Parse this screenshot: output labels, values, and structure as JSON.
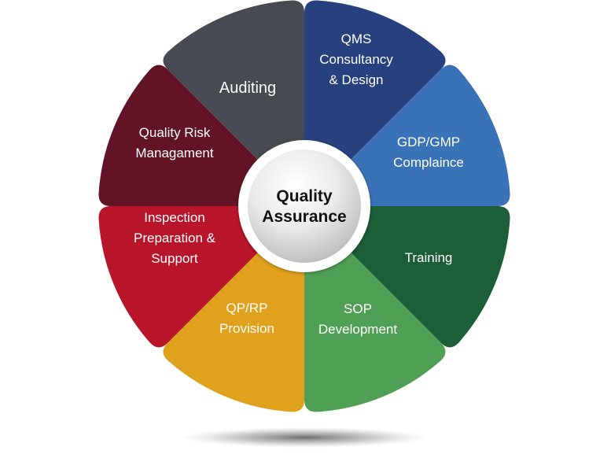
{
  "center": {
    "lines": [
      "Quality",
      "Assurance"
    ]
  },
  "segments": [
    {
      "id": "qms",
      "lines": [
        "QMS",
        "Consultancy",
        "& Design"
      ],
      "color": "#27417f"
    },
    {
      "id": "gdp-gmp",
      "lines": [
        "GDP/GMP",
        "Complaince"
      ],
      "color": "#3a72b8"
    },
    {
      "id": "training",
      "lines": [
        "Training"
      ],
      "color": "#1b5e37"
    },
    {
      "id": "sop",
      "lines": [
        "SOP",
        "Development"
      ],
      "color": "#4f9f54"
    },
    {
      "id": "qp-rp",
      "lines": [
        "QP/RP",
        "Provision"
      ],
      "color": "#e0a11d"
    },
    {
      "id": "inspection",
      "lines": [
        "Inspection",
        "Preparation &",
        "Support"
      ],
      "color": "#b8152b"
    },
    {
      "id": "quality-risk",
      "lines": [
        "Quality Risk",
        "Managament"
      ],
      "color": "#621426"
    },
    {
      "id": "auditing",
      "lines": [
        "Auditing"
      ],
      "color": "#474a50"
    }
  ]
}
